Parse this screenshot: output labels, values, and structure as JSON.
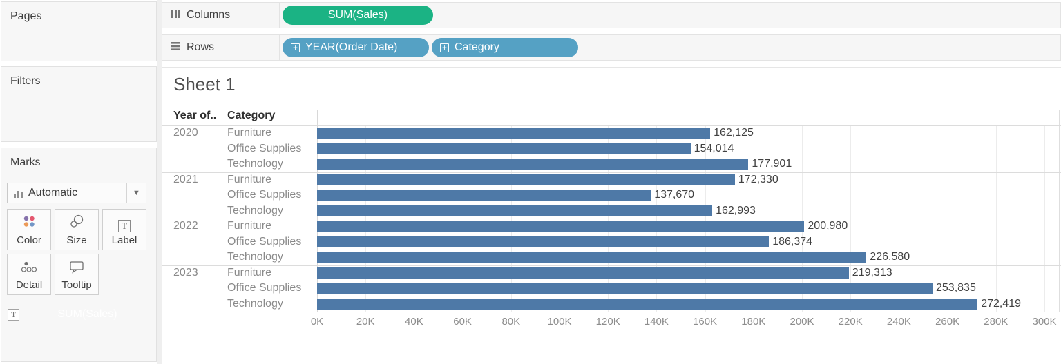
{
  "colors": {
    "bar": "#4e79a7",
    "measure_pill": "#1bb384",
    "dimension_pill": "#55a1c4"
  },
  "sidebar": {
    "pages_label": "Pages",
    "filters_label": "Filters",
    "marks": {
      "label": "Marks",
      "mark_type": "Automatic",
      "buttons": [
        {
          "label": "Color"
        },
        {
          "label": "Size"
        },
        {
          "label": "Label"
        },
        {
          "label": "Detail"
        },
        {
          "label": "Tooltip"
        }
      ],
      "encoding_pill": {
        "badge": "T",
        "label": "SUM(Sales)"
      }
    }
  },
  "shelves": {
    "columns": {
      "label": "Columns",
      "pills": [
        {
          "label": "SUM(Sales)",
          "kind": "measure"
        }
      ]
    },
    "rows": {
      "label": "Rows",
      "pills": [
        {
          "label": "YEAR(Order Date)",
          "kind": "dimension"
        },
        {
          "label": "Category",
          "kind": "dimension"
        }
      ]
    }
  },
  "sheet": {
    "title": "Sheet 1"
  },
  "chart_data": {
    "type": "bar",
    "orientation": "horizontal",
    "title": "Sheet 1",
    "value_field": "SUM(Sales)",
    "row_headers": [
      "Year of..",
      "Category"
    ],
    "groups": [
      {
        "year": "2020",
        "bars": [
          {
            "category": "Furniture",
            "value": 162125,
            "label": "162,125"
          },
          {
            "category": "Office Supplies",
            "value": 154014,
            "label": "154,014"
          },
          {
            "category": "Technology",
            "value": 177901,
            "label": "177,901"
          }
        ]
      },
      {
        "year": "2021",
        "bars": [
          {
            "category": "Furniture",
            "value": 172330,
            "label": "172,330"
          },
          {
            "category": "Office Supplies",
            "value": 137670,
            "label": "137,670"
          },
          {
            "category": "Technology",
            "value": 162993,
            "label": "162,993"
          }
        ]
      },
      {
        "year": "2022",
        "bars": [
          {
            "category": "Furniture",
            "value": 200980,
            "label": "200,980"
          },
          {
            "category": "Office Supplies",
            "value": 186374,
            "label": "186,374"
          },
          {
            "category": "Technology",
            "value": 226580,
            "label": "226,580"
          }
        ]
      },
      {
        "year": "2023",
        "bars": [
          {
            "category": "Furniture",
            "value": 219313,
            "label": "219,313"
          },
          {
            "category": "Office Supplies",
            "value": 253835,
            "label": "253,835"
          },
          {
            "category": "Technology",
            "value": 272419,
            "label": "272,419"
          }
        ]
      }
    ],
    "x_axis": {
      "ticks": [
        "0K",
        "20K",
        "40K",
        "60K",
        "80K",
        "100K",
        "120K",
        "140K",
        "160K",
        "180K",
        "200K",
        "220K",
        "240K",
        "260K",
        "280K",
        "300K"
      ],
      "tick_value_step": 20000,
      "min": 0,
      "max": 307000,
      "grid": true
    },
    "legend_position": "none"
  }
}
